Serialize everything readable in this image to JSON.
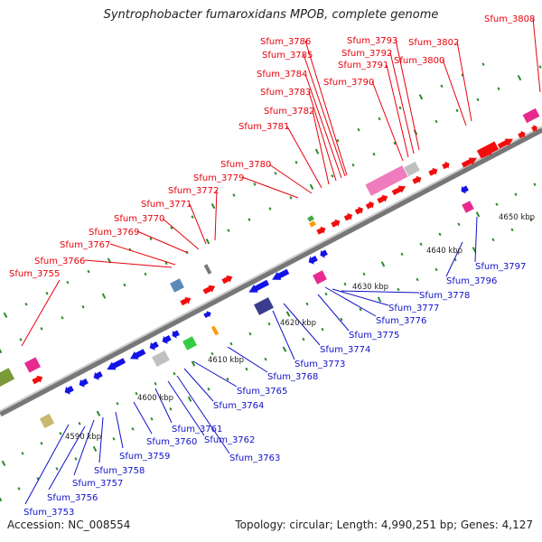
{
  "title": "Syntrophobacter fumaroxidans MPOB, complete genome",
  "footer": {
    "accession": "Accession: NC_008554",
    "topology": "Topology: circular; Length: 4,990,251 bp; Genes: 4,127"
  },
  "colors": {
    "forward_label": "#e8000b",
    "reverse_label": "#1010c8",
    "forward_gene": "#f20d0d",
    "reverse_gene": "#1313e6",
    "rrna_pink": "#e8298f",
    "light_pink": "#f07cbd",
    "gray": "#c0c0c0",
    "backbone": "#888888",
    "tick": "#2b8a2b"
  },
  "scale": {
    "ticks": [
      {
        "label": "4590 kbp"
      },
      {
        "label": "4600 kbp"
      },
      {
        "label": "4610 kbp"
      },
      {
        "label": "4620 kbp"
      },
      {
        "label": "4630 kbp"
      },
      {
        "label": "4640 kbp"
      },
      {
        "label": "4650 kbp"
      }
    ]
  },
  "forward_labels": [
    "Sfum_3755",
    "Sfum_3766",
    "Sfum_3767",
    "Sfum_3769",
    "Sfum_3770",
    "Sfum_3771",
    "Sfum_3772",
    "Sfum_3779",
    "Sfum_3780",
    "Sfum_3781",
    "Sfum_3782",
    "Sfum_3783",
    "Sfum_3784",
    "Sfum_3785",
    "Sfum_3786",
    "Sfum_3790",
    "Sfum_3791",
    "Sfum_3792",
    "Sfum_3793",
    "Sfum_3800",
    "Sfum_3802",
    "Sfum_3808"
  ],
  "reverse_labels": [
    "Sfum_3753",
    "Sfum_3756",
    "Sfum_3757",
    "Sfum_3758",
    "Sfum_3759",
    "Sfum_3760",
    "Sfum_3761",
    "Sfum_3762",
    "Sfum_3763",
    "Sfum_3764",
    "Sfum_3765",
    "Sfum_3768",
    "Sfum_3773",
    "Sfum_3774",
    "Sfum_3775",
    "Sfum_3776",
    "Sfum_3777",
    "Sfum_3778",
    "Sfum_3796",
    "Sfum_3797"
  ]
}
